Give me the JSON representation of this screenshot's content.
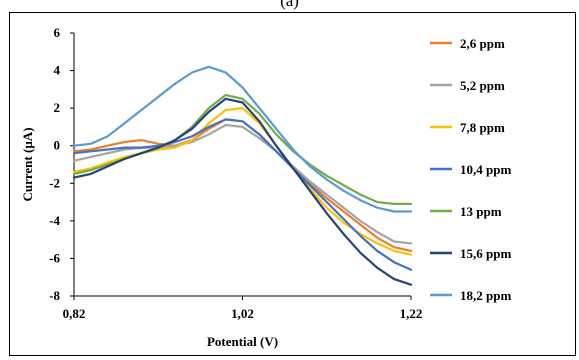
{
  "panel_label": "(a)",
  "chart_data": {
    "type": "line",
    "title": "",
    "xlabel": "Potential (V)",
    "ylabel": "Current (µA)",
    "xlim": [
      0.82,
      1.22
    ],
    "ylim": [
      -8,
      6
    ],
    "x_ticks": [
      {
        "v": 0.82,
        "label": "0,82"
      },
      {
        "v": 1.02,
        "label": "1,02"
      },
      {
        "v": 1.22,
        "label": "1,22"
      }
    ],
    "y_ticks": [
      {
        "v": 6,
        "label": "6"
      },
      {
        "v": 4,
        "label": "4"
      },
      {
        "v": 2,
        "label": "2"
      },
      {
        "v": 0,
        "label": "0"
      },
      {
        "v": -2,
        "label": "-2"
      },
      {
        "v": -4,
        "label": "-4"
      },
      {
        "v": -6,
        "label": "-6"
      },
      {
        "v": -8,
        "label": "-8"
      }
    ],
    "grid": false,
    "legend_position": "right",
    "series": [
      {
        "name": "2,6 ppm",
        "color": "#ED7D31",
        "x": [
          0.82,
          0.84,
          0.86,
          0.88,
          0.9,
          0.92,
          0.94,
          0.96,
          0.98,
          1.0,
          1.02,
          1.04,
          1.06,
          1.08,
          1.1,
          1.12,
          1.14,
          1.16,
          1.18,
          1.2,
          1.22
        ],
        "y": [
          -0.3,
          -0.2,
          0.0,
          0.2,
          0.3,
          0.1,
          0.0,
          0.3,
          0.9,
          1.4,
          1.3,
          0.6,
          -0.3,
          -1.2,
          -2.0,
          -2.8,
          -3.5,
          -4.2,
          -4.9,
          -5.4,
          -5.6
        ]
      },
      {
        "name": "5,2 ppm",
        "color": "#A5A5A5",
        "x": [
          0.82,
          0.84,
          0.86,
          0.88,
          0.9,
          0.92,
          0.94,
          0.96,
          0.98,
          1.0,
          1.02,
          1.04,
          1.06,
          1.08,
          1.1,
          1.12,
          1.14,
          1.16,
          1.18,
          1.2,
          1.22
        ],
        "y": [
          -0.8,
          -0.6,
          -0.4,
          -0.2,
          -0.1,
          -0.1,
          0.0,
          0.2,
          0.6,
          1.1,
          1.0,
          0.4,
          -0.3,
          -1.1,
          -1.9,
          -2.6,
          -3.3,
          -4.0,
          -4.6,
          -5.1,
          -5.2
        ]
      },
      {
        "name": "7,8 ppm",
        "color": "#FFC000",
        "x": [
          0.82,
          0.84,
          0.86,
          0.88,
          0.9,
          0.92,
          0.94,
          0.96,
          0.98,
          1.0,
          1.02,
          1.04,
          1.06,
          1.08,
          1.1,
          1.12,
          1.14,
          1.16,
          1.18,
          1.2,
          1.22
        ],
        "y": [
          -1.4,
          -1.2,
          -0.9,
          -0.6,
          -0.4,
          -0.2,
          -0.1,
          0.3,
          1.2,
          1.9,
          2.0,
          1.2,
          0.0,
          -1.2,
          -2.3,
          -3.3,
          -4.1,
          -4.7,
          -5.2,
          -5.6,
          -5.8
        ]
      },
      {
        "name": "10,4 ppm",
        "color": "#4472C4",
        "x": [
          0.82,
          0.84,
          0.86,
          0.88,
          0.9,
          0.92,
          0.94,
          0.96,
          0.98,
          1.0,
          1.02,
          1.04,
          1.06,
          1.08,
          1.1,
          1.12,
          1.14,
          1.16,
          1.18,
          1.2,
          1.22
        ],
        "y": [
          -0.4,
          -0.3,
          -0.2,
          -0.1,
          -0.1,
          0.0,
          0.2,
          0.5,
          1.0,
          1.4,
          1.3,
          0.6,
          -0.3,
          -1.2,
          -2.1,
          -3.0,
          -3.9,
          -4.8,
          -5.6,
          -6.2,
          -6.6
        ]
      },
      {
        "name": "13 ppm",
        "color": "#70AD47",
        "x": [
          0.82,
          0.84,
          0.86,
          0.88,
          0.9,
          0.92,
          0.94,
          0.96,
          0.98,
          1.0,
          1.02,
          1.04,
          1.06,
          1.08,
          1.1,
          1.12,
          1.14,
          1.16,
          1.18,
          1.2,
          1.22
        ],
        "y": [
          -1.5,
          -1.3,
          -1.0,
          -0.7,
          -0.4,
          -0.1,
          0.3,
          1.0,
          2.0,
          2.7,
          2.5,
          1.7,
          0.6,
          -0.3,
          -1.0,
          -1.6,
          -2.1,
          -2.6,
          -3.0,
          -3.1,
          -3.1
        ]
      },
      {
        "name": "15,6 ppm",
        "color": "#264478",
        "x": [
          0.82,
          0.84,
          0.86,
          0.88,
          0.9,
          0.92,
          0.94,
          0.96,
          0.98,
          1.0,
          1.02,
          1.04,
          1.06,
          1.08,
          1.1,
          1.12,
          1.14,
          1.16,
          1.18,
          1.2,
          1.22
        ],
        "y": [
          -1.7,
          -1.5,
          -1.1,
          -0.7,
          -0.4,
          -0.1,
          0.3,
          0.9,
          1.8,
          2.5,
          2.3,
          1.3,
          0.0,
          -1.2,
          -2.4,
          -3.6,
          -4.7,
          -5.7,
          -6.5,
          -7.1,
          -7.4
        ]
      },
      {
        "name": "18,2 ppm",
        "color": "#5B9BD5",
        "x": [
          0.82,
          0.84,
          0.86,
          0.88,
          0.9,
          0.92,
          0.94,
          0.96,
          0.98,
          1.0,
          1.02,
          1.04,
          1.06,
          1.08,
          1.1,
          1.12,
          1.14,
          1.16,
          1.18,
          1.2,
          1.22
        ],
        "y": [
          0.0,
          0.1,
          0.5,
          1.2,
          1.9,
          2.6,
          3.3,
          3.9,
          4.2,
          3.9,
          3.1,
          2.0,
          0.9,
          -0.2,
          -1.1,
          -1.8,
          -2.4,
          -2.9,
          -3.3,
          -3.5,
          -3.5
        ]
      }
    ]
  }
}
